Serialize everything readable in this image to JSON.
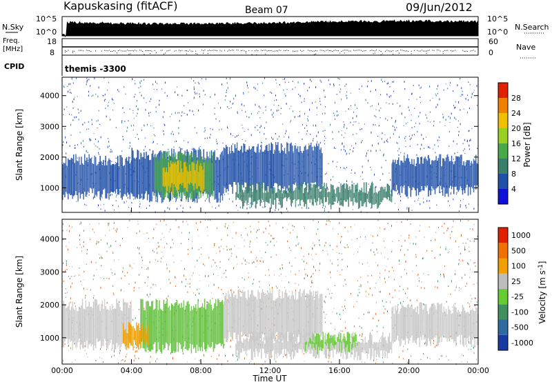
{
  "header": {
    "station": "Kapuskasing (fitACF)",
    "beam": "Beam 07",
    "date": "09/Jun/2012"
  },
  "top_panels": {
    "nsky_label": "N.Sky",
    "nsky_ticks": [
      "10^5",
      "10^0"
    ],
    "nsearch_label": "N.Search",
    "nsearch_ticks": [
      "10^5",
      "10^0"
    ],
    "freq_label_1": "Freq.",
    "freq_label_2": "[MHz]",
    "freq_ticks": [
      "18",
      "8"
    ],
    "nave_label": "Nave",
    "nave_ticks": [
      "60",
      "0"
    ],
    "cpid_label": "CPID",
    "cpid_value": "themis -3300"
  },
  "chart_data": [
    {
      "type": "heatmap",
      "name": "power",
      "ylabel": "Slant Range [km]",
      "yticks": [
        1000,
        2000,
        3000,
        4000
      ],
      "ylim": [
        200,
        4600
      ],
      "xlim": [
        0,
        24
      ],
      "colorbar": {
        "label": "Power [dB]",
        "ticks": [
          "4",
          "8",
          "12",
          "16",
          "20",
          "24",
          "28"
        ],
        "colors": [
          "#1010d8",
          "#2050a8",
          "#3a7f6a",
          "#48a84a",
          "#9ad020",
          "#f0c000",
          "#f08000",
          "#e02000"
        ]
      },
      "regions": [
        {
          "t0": 0.0,
          "t1": 4.0,
          "r0": 800,
          "r1": 1900,
          "level": 1
        },
        {
          "t0": 4.0,
          "t1": 9.3,
          "r0": 700,
          "r1": 2100,
          "level": 1
        },
        {
          "t0": 5.3,
          "t1": 8.7,
          "r0": 800,
          "r1": 2000,
          "level": 3
        },
        {
          "t0": 5.8,
          "t1": 8.2,
          "r0": 1000,
          "r1": 1700,
          "level": 5
        },
        {
          "t0": 9.3,
          "t1": 15.0,
          "r0": 1000,
          "r1": 2300,
          "level": 1
        },
        {
          "t0": 10.0,
          "t1": 19.0,
          "r0": 500,
          "r1": 1000,
          "level": 2
        },
        {
          "t0": 19.0,
          "t1": 24.0,
          "r0": 900,
          "r1": 1900,
          "level": 1
        }
      ]
    },
    {
      "type": "heatmap",
      "name": "velocity",
      "ylabel": "Slant Range [km]",
      "yticks": [
        1000,
        2000,
        3000,
        4000
      ],
      "ylim": [
        200,
        4600
      ],
      "xlim": [
        0,
        24
      ],
      "xticks": [
        "00:00",
        "04:00",
        "08:00",
        "12:00",
        "16:00",
        "20:00",
        "00:00"
      ],
      "xlabel": "Time UT",
      "colorbar": {
        "label": "Velocity [m s^-1]",
        "ticks": [
          "1000",
          "500",
          "100",
          "25",
          "-25",
          "-100",
          "-500",
          "-1000"
        ],
        "colors": [
          "#1a3aa0",
          "#2f6aa0",
          "#3f8f5f",
          "#66cc33",
          "#bdbdbd",
          "#f0a000",
          "#f07000",
          "#e02000"
        ]
      },
      "regions": [
        {
          "t0": 0.0,
          "t1": 4.0,
          "r0": 800,
          "r1": 2000,
          "color": "#c8c8c8"
        },
        {
          "t0": 4.5,
          "t1": 9.3,
          "r0": 700,
          "r1": 2000,
          "color": "#5fbf3a"
        },
        {
          "t0": 3.5,
          "t1": 5.0,
          "r0": 800,
          "r1": 1300,
          "color": "#f0a000"
        },
        {
          "t0": 9.3,
          "t1": 15.0,
          "r0": 1000,
          "r1": 2300,
          "color": "#c8c8c8"
        },
        {
          "t0": 10.0,
          "t1": 19.0,
          "r0": 500,
          "r1": 1000,
          "color": "#c8c8c8"
        },
        {
          "t0": 14.0,
          "t1": 17.0,
          "r0": 700,
          "r1": 1000,
          "color": "#66cc33"
        },
        {
          "t0": 19.0,
          "t1": 24.0,
          "r0": 900,
          "r1": 1900,
          "color": "#c8c8c8"
        }
      ]
    }
  ]
}
